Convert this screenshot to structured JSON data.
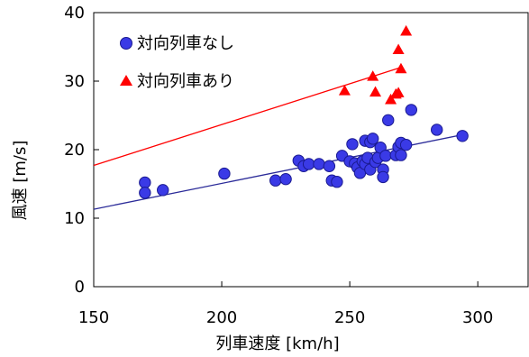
{
  "chart_data": {
    "type": "scatter",
    "xlabel": "列車速度 [km/h]",
    "ylabel": "風速 [m/s]",
    "xlim": [
      150,
      320
    ],
    "ylim": [
      0,
      40
    ],
    "x_ticks": [
      150,
      200,
      250,
      300
    ],
    "y_ticks": [
      0,
      10,
      20,
      30,
      40
    ],
    "grid": false,
    "legend_position": "top-left",
    "series": [
      {
        "name": "対向列車なし",
        "marker": "circle",
        "color": "#3333dd",
        "points": [
          [
            170,
            15.2
          ],
          [
            170,
            13.7
          ],
          [
            177,
            14.1
          ],
          [
            201,
            16.5
          ],
          [
            221,
            15.5
          ],
          [
            225,
            15.7
          ],
          [
            230,
            18.4
          ],
          [
            232,
            17.6
          ],
          [
            234,
            17.9
          ],
          [
            238,
            17.9
          ],
          [
            242,
            17.6
          ],
          [
            243,
            15.5
          ],
          [
            245,
            15.3
          ],
          [
            247,
            19.1
          ],
          [
            250,
            18.3
          ],
          [
            251,
            20.8
          ],
          [
            252,
            18.0
          ],
          [
            253,
            17.4
          ],
          [
            254,
            16.6
          ],
          [
            255,
            18.3
          ],
          [
            256,
            21.3
          ],
          [
            256,
            17.9
          ],
          [
            257,
            18.8
          ],
          [
            258,
            17.1
          ],
          [
            258,
            21.1
          ],
          [
            259,
            21.6
          ],
          [
            260,
            18.2
          ],
          [
            261,
            18.8
          ],
          [
            262,
            20.3
          ],
          [
            263,
            17.1
          ],
          [
            263,
            16.0
          ],
          [
            264,
            19.1
          ],
          [
            265,
            24.3
          ],
          [
            268,
            19.2
          ],
          [
            269,
            20.4
          ],
          [
            270,
            21.0
          ],
          [
            270,
            19.2
          ],
          [
            272,
            20.7
          ],
          [
            274,
            25.8
          ],
          [
            284,
            22.9
          ],
          [
            294,
            22.0
          ]
        ]
      },
      {
        "name": "対向列車あり",
        "marker": "triangle",
        "color": "#ff0000",
        "points": [
          [
            248,
            28.6
          ],
          [
            259,
            30.7
          ],
          [
            260,
            28.4
          ],
          [
            266,
            27.3
          ],
          [
            268,
            28.1
          ],
          [
            269,
            28.3
          ],
          [
            269,
            34.6
          ],
          [
            270,
            31.8
          ],
          [
            272,
            37.3
          ]
        ]
      }
    ],
    "trendlines": [
      {
        "series": "対向列車なし",
        "color": "#2b2b99",
        "from": [
          150,
          11.3
        ],
        "to": [
          293,
          22.1
        ]
      },
      {
        "series": "対向列車あり",
        "color": "#ff0000",
        "from": [
          150,
          17.7
        ],
        "to": [
          270,
          32.0
        ]
      }
    ]
  }
}
